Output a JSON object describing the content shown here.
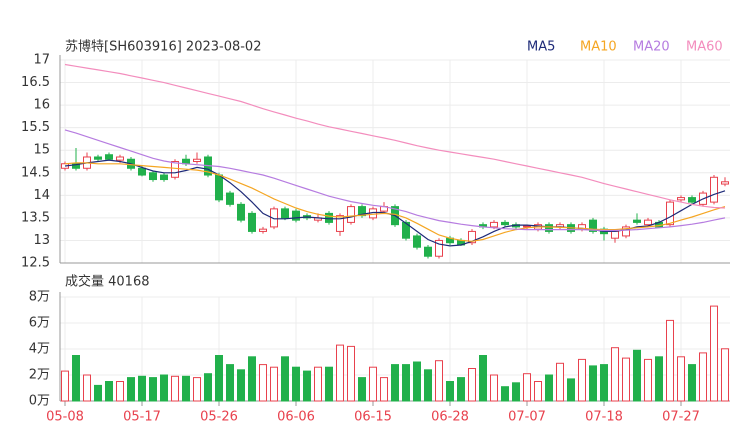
{
  "chart_data": {
    "type": "candlestick",
    "title": "苏博特[SH603916] 2023-08-02",
    "categories": [
      "05-08",
      null,
      null,
      null,
      null,
      null,
      null,
      "05-17",
      null,
      null,
      null,
      null,
      null,
      null,
      "05-26",
      null,
      null,
      null,
      null,
      null,
      null,
      "06-06",
      null,
      null,
      null,
      null,
      null,
      null,
      "06-15",
      null,
      null,
      null,
      null,
      null,
      null,
      "06-28",
      null,
      null,
      null,
      null,
      null,
      null,
      "07-07",
      null,
      null,
      null,
      null,
      null,
      null,
      "07-18",
      null,
      null,
      null,
      null,
      null,
      null,
      "07-27",
      null,
      null,
      null,
      null
    ],
    "ylim": [
      12.5,
      17
    ],
    "yticks": [
      12.5,
      13,
      13.5,
      14,
      14.5,
      15,
      15.5,
      16,
      16.5,
      17
    ],
    "grid": true,
    "up_color": "#e8414d",
    "down_color": "#21b04b",
    "ohlc": {
      "open": [
        14.6,
        14.7,
        14.6,
        14.85,
        14.9,
        14.78,
        14.8,
        14.6,
        14.5,
        14.45,
        14.4,
        14.8,
        14.75,
        14.85,
        14.45,
        14.05,
        13.8,
        13.6,
        13.2,
        13.3,
        13.7,
        13.65,
        13.55,
        13.45,
        13.6,
        13.2,
        13.4,
        13.75,
        13.5,
        13.65,
        13.75,
        13.4,
        13.1,
        12.85,
        12.65,
        13.05,
        13.0,
        12.95,
        13.35,
        13.3,
        13.4,
        13.35,
        13.3,
        13.25,
        13.35,
        13.3,
        13.35,
        13.25,
        13.45,
        13.25,
        13.05,
        13.1,
        13.45,
        13.35,
        13.4,
        13.35,
        13.9,
        13.95,
        13.8,
        13.85,
        14.25
      ],
      "high": [
        14.75,
        15.05,
        14.95,
        14.9,
        14.95,
        14.9,
        14.85,
        14.65,
        14.55,
        14.5,
        14.8,
        14.9,
        14.95,
        14.9,
        14.5,
        14.1,
        13.85,
        13.65,
        13.3,
        13.75,
        13.75,
        13.7,
        13.6,
        13.6,
        13.65,
        13.6,
        13.8,
        13.8,
        13.75,
        13.85,
        13.8,
        13.45,
        13.15,
        12.9,
        13.05,
        13.1,
        13.05,
        13.25,
        13.4,
        13.45,
        13.45,
        13.4,
        13.35,
        13.4,
        13.4,
        13.4,
        13.4,
        13.4,
        13.5,
        13.3,
        13.25,
        13.35,
        13.6,
        13.5,
        13.45,
        13.9,
        14.0,
        14.0,
        14.1,
        14.45,
        14.4
      ],
      "low": [
        14.55,
        14.55,
        14.55,
        14.75,
        14.8,
        14.72,
        14.55,
        14.42,
        14.3,
        14.3,
        14.35,
        14.65,
        14.7,
        14.4,
        13.85,
        13.75,
        13.4,
        13.15,
        13.15,
        13.25,
        13.45,
        13.4,
        13.45,
        13.4,
        13.35,
        13.1,
        13.35,
        13.5,
        13.45,
        13.6,
        13.3,
        13.0,
        12.8,
        12.6,
        12.6,
        12.9,
        12.88,
        12.9,
        13.25,
        13.25,
        13.3,
        13.25,
        13.25,
        13.2,
        13.15,
        13.25,
        13.15,
        13.2,
        13.15,
        13.0,
        12.95,
        13.05,
        13.35,
        13.3,
        13.28,
        13.3,
        13.85,
        13.8,
        13.75,
        13.8,
        14.2
      ],
      "close": [
        14.7,
        14.6,
        14.85,
        14.8,
        14.8,
        14.85,
        14.6,
        14.45,
        14.35,
        14.35,
        14.75,
        14.7,
        14.8,
        14.45,
        13.9,
        13.8,
        13.45,
        13.2,
        13.25,
        13.7,
        13.5,
        13.45,
        13.5,
        13.5,
        13.4,
        13.55,
        13.75,
        13.55,
        13.7,
        13.75,
        13.35,
        13.05,
        12.85,
        12.65,
        13.0,
        12.95,
        12.9,
        13.2,
        13.3,
        13.4,
        13.35,
        13.3,
        13.32,
        13.35,
        13.2,
        13.35,
        13.2,
        13.35,
        13.2,
        13.15,
        13.2,
        13.3,
        13.4,
        13.45,
        13.3,
        13.85,
        13.95,
        13.85,
        14.05,
        14.4,
        14.3
      ]
    },
    "series": [
      {
        "name": "MA5",
        "color": "#1e2a78",
        "values": [
          14.65,
          14.68,
          14.72,
          14.75,
          14.78,
          14.75,
          14.7,
          14.62,
          14.54,
          14.5,
          14.5,
          14.55,
          14.62,
          14.58,
          14.45,
          14.28,
          14.08,
          13.85,
          13.6,
          13.48,
          13.48,
          13.5,
          13.52,
          13.5,
          13.48,
          13.48,
          13.52,
          13.58,
          13.62,
          13.62,
          13.55,
          13.38,
          13.2,
          13.02,
          12.92,
          12.88,
          12.9,
          12.98,
          13.08,
          13.2,
          13.3,
          13.34,
          13.34,
          13.32,
          13.3,
          13.3,
          13.28,
          13.27,
          13.24,
          13.2,
          13.2,
          13.24,
          13.3,
          13.32,
          13.4,
          13.52,
          13.66,
          13.8,
          13.92,
          14.02,
          14.1
        ]
      },
      {
        "name": "MA10",
        "color": "#f5a623",
        "values": [
          14.7,
          14.72,
          14.72,
          14.7,
          14.7,
          14.7,
          14.68,
          14.66,
          14.64,
          14.62,
          14.6,
          14.58,
          14.56,
          14.52,
          14.45,
          14.36,
          14.26,
          14.16,
          14.04,
          13.92,
          13.82,
          13.72,
          13.64,
          13.58,
          13.54,
          13.52,
          13.54,
          13.56,
          13.58,
          13.6,
          13.58,
          13.5,
          13.38,
          13.25,
          13.12,
          13.05,
          13.0,
          12.98,
          13.02,
          13.1,
          13.18,
          13.24,
          13.28,
          13.3,
          13.3,
          13.29,
          13.28,
          13.27,
          13.25,
          13.24,
          13.24,
          13.26,
          13.28,
          13.3,
          13.33,
          13.38,
          13.45,
          13.52,
          13.6,
          13.68,
          13.75
        ]
      },
      {
        "name": "MA20",
        "color": "#b67ce0",
        "values": [
          15.45,
          15.38,
          15.3,
          15.22,
          15.14,
          15.06,
          14.98,
          14.9,
          14.82,
          14.76,
          14.72,
          14.7,
          14.68,
          14.66,
          14.64,
          14.6,
          14.55,
          14.5,
          14.45,
          14.38,
          14.3,
          14.22,
          14.14,
          14.06,
          13.98,
          13.92,
          13.86,
          13.82,
          13.78,
          13.75,
          13.7,
          13.64,
          13.56,
          13.5,
          13.44,
          13.4,
          13.36,
          13.33,
          13.3,
          13.28,
          13.26,
          13.25,
          13.24,
          13.24,
          13.24,
          13.24,
          13.24,
          13.24,
          13.23,
          13.22,
          13.22,
          13.23,
          13.24,
          13.26,
          13.28,
          13.3,
          13.33,
          13.36,
          13.4,
          13.45,
          13.5
        ]
      },
      {
        "name": "MA60",
        "color": "#f38dbd",
        "values": [
          16.9,
          16.86,
          16.82,
          16.78,
          16.74,
          16.7,
          16.65,
          16.6,
          16.55,
          16.5,
          16.44,
          16.38,
          16.32,
          16.26,
          16.2,
          16.14,
          16.08,
          16.0,
          15.92,
          15.85,
          15.78,
          15.71,
          15.65,
          15.58,
          15.52,
          15.47,
          15.42,
          15.37,
          15.32,
          15.27,
          15.22,
          15.16,
          15.1,
          15.05,
          15.0,
          14.96,
          14.92,
          14.88,
          14.84,
          14.8,
          14.75,
          14.7,
          14.65,
          14.6,
          14.55,
          14.5,
          14.45,
          14.4,
          14.33,
          14.26,
          14.2,
          14.14,
          14.08,
          14.02,
          13.96,
          13.9,
          13.85,
          13.8,
          13.76,
          13.73,
          13.72
        ]
      }
    ],
    "volume": {
      "title": "成交量 40168",
      "ylim": [
        0,
        80000
      ],
      "yticks": [
        {
          "value": 0,
          "label": "0万"
        },
        {
          "value": 20000,
          "label": "2万"
        },
        {
          "value": 40000,
          "label": "4万"
        },
        {
          "value": 60000,
          "label": "6万"
        },
        {
          "value": 80000,
          "label": "8万"
        }
      ],
      "values": [
        23000,
        35000,
        20000,
        12000,
        15000,
        15000,
        18000,
        19000,
        18000,
        20000,
        19000,
        19000,
        18000,
        21000,
        35000,
        28000,
        24000,
        34000,
        28000,
        26000,
        34000,
        26000,
        23000,
        26000,
        26000,
        43000,
        42000,
        18000,
        26000,
        18000,
        28000,
        28000,
        30000,
        24000,
        31000,
        15000,
        18000,
        25000,
        35000,
        20000,
        11000,
        14000,
        21000,
        15000,
        20000,
        29000,
        17000,
        32000,
        27000,
        28000,
        41000,
        33000,
        39000,
        32000,
        34000,
        62000,
        34000,
        28000,
        37000,
        73000,
        40168
      ]
    }
  }
}
